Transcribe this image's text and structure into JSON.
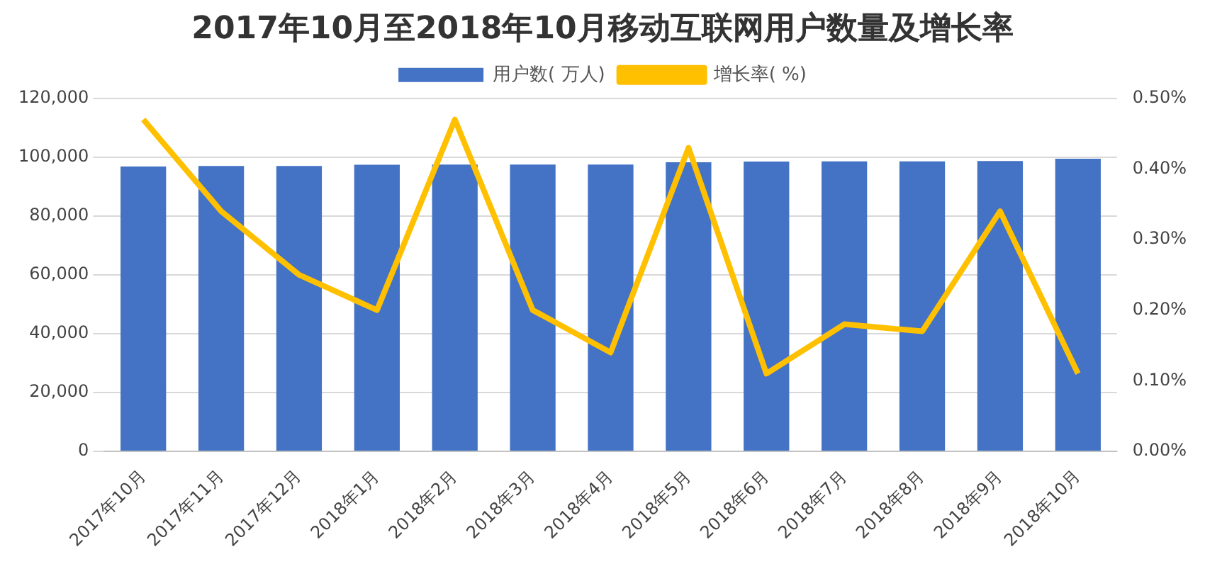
{
  "chart_data": {
    "type": "bar",
    "title": "2017年10月至2018年10月移动互联网用户数量及增长率",
    "categories": [
      "2017年10月",
      "2017年11月",
      "2017年12月",
      "2018年1月",
      "2018年2月",
      "2018年3月",
      "2018年4月",
      "2018年5月",
      "2018年6月",
      "2018年7月",
      "2018年8月",
      "2018年9月",
      "2018年10月"
    ],
    "series": [
      {
        "name": "用户数( 万人)",
        "color": "#4472c4",
        "values": [
          96800,
          97000,
          97000,
          97400,
          97500,
          97500,
          97500,
          98300,
          98500,
          98600,
          98600,
          98700,
          99500
        ]
      },
      {
        "name": "增长率( %)",
        "type": "line",
        "axis": "y2",
        "color": "#ffc000",
        "values": [
          0.47,
          0.34,
          0.25,
          0.2,
          0.47,
          0.2,
          0.14,
          0.43,
          0.11,
          0.18,
          0.17,
          0.34,
          0.11
        ]
      }
    ],
    "ylim": [
      0,
      120000
    ],
    "yticks": [
      {
        "value": 0,
        "label": "0"
      },
      {
        "value": 20000,
        "label": "20,000"
      },
      {
        "value": 40000,
        "label": "40,000"
      },
      {
        "value": 60000,
        "label": "60,000"
      },
      {
        "value": 80000,
        "label": "80,000"
      },
      {
        "value": 100000,
        "label": "100,000"
      },
      {
        "value": 120000,
        "label": "120,000"
      }
    ],
    "y2lim": [
      0,
      0.5
    ],
    "y2ticks": [
      {
        "value": 0,
        "label": "0.00%"
      },
      {
        "value": 0.1,
        "label": "0.10%"
      },
      {
        "value": 0.2,
        "label": "0.20%"
      },
      {
        "value": 0.3,
        "label": "0.30%"
      },
      {
        "value": 0.4,
        "label": "0.40%"
      },
      {
        "value": 0.5,
        "label": "0.50%"
      }
    ],
    "grid": "y",
    "legend": "top",
    "marker": "none"
  }
}
